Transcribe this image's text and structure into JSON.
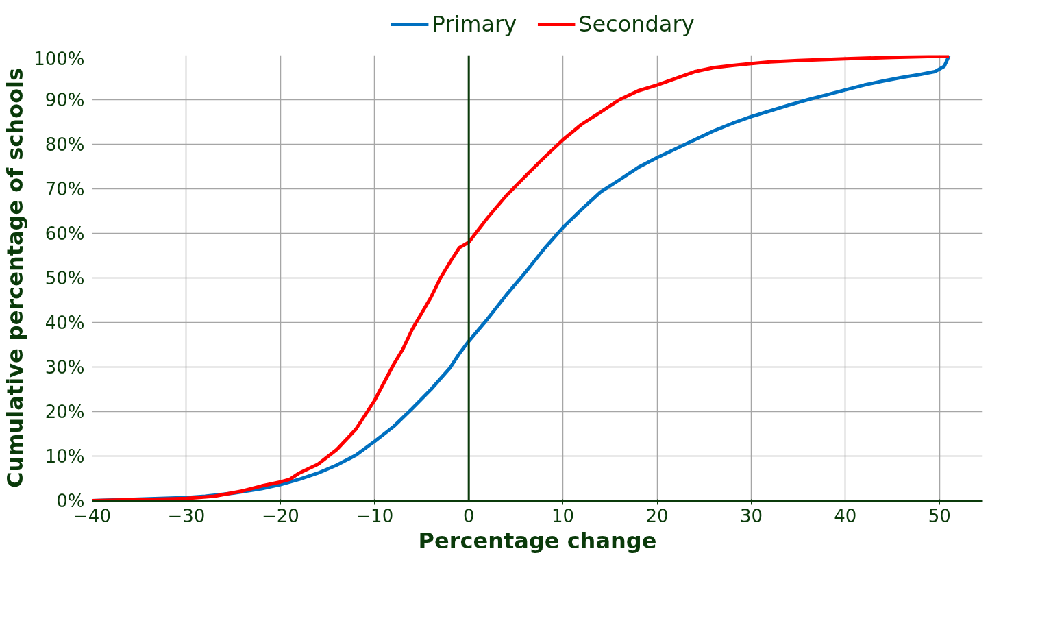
{
  "chart_data": {
    "type": "line",
    "xlabel": "Percentage change",
    "ylabel": "Cumulative percentage of schools",
    "legend": "top",
    "grid": true,
    "marker": "none",
    "line_style": "solid",
    "xlim": [
      -40,
      54.6
    ],
    "ylim": [
      0,
      100
    ],
    "xticks": [
      -40,
      -30,
      -20,
      -10,
      0,
      10,
      20,
      30,
      40,
      50
    ],
    "yticks": [
      {
        "value": 0,
        "label": "0%"
      },
      {
        "value": 10,
        "label": "10%"
      },
      {
        "value": 20,
        "label": "20%"
      },
      {
        "value": 30,
        "label": "30%"
      },
      {
        "value": 40,
        "label": "40%"
      },
      {
        "value": 50,
        "label": "50%"
      },
      {
        "value": 60,
        "label": "60%"
      },
      {
        "value": 70,
        "label": "70%"
      },
      {
        "value": 80,
        "label": "80%"
      },
      {
        "value": 90,
        "label": "90%"
      },
      {
        "value": 100,
        "label": "100%"
      }
    ],
    "ref_lines": [
      {
        "axis": "x",
        "value": 0,
        "color": "#0a3a0a"
      }
    ],
    "series": [
      {
        "name": "Primary",
        "color": "#0070c0",
        "x": [
          -40,
          -30,
          -28,
          -25,
          -22,
          -20,
          -18,
          -16,
          -14,
          -12,
          -10,
          -8,
          -6,
          -4,
          -2,
          -1,
          0,
          2,
          4,
          6,
          8,
          10,
          12,
          14,
          16,
          18,
          20,
          22,
          24,
          26,
          28,
          30,
          32,
          34,
          36,
          38,
          40,
          42,
          44,
          46,
          48,
          49.5,
          50.5,
          51
        ],
        "values": [
          0,
          0.7,
          1.0,
          1.7,
          2.7,
          3.6,
          4.8,
          6.2,
          8.0,
          10.2,
          13.3,
          16.6,
          20.7,
          25.0,
          29.8,
          33.0,
          35.8,
          40.8,
          46.2,
          51.2,
          56.5,
          61.3,
          65.4,
          69.3,
          72.0,
          74.8,
          77.0,
          79.0,
          81.0,
          83.0,
          84.7,
          86.2,
          87.5,
          88.8,
          90.0,
          91.1,
          92.2,
          93.3,
          94.2,
          95.0,
          95.7,
          96.3,
          97.5,
          99.8
        ]
      },
      {
        "name": "Secondary",
        "color": "#ff0000",
        "x": [
          -40,
          -30,
          -27,
          -24,
          -22,
          -20,
          -19,
          -18,
          -16,
          -14,
          -12,
          -10,
          -8,
          -7,
          -6,
          -4,
          -3,
          -2,
          -1,
          0,
          2,
          4,
          6,
          8,
          10,
          12,
          14,
          16,
          18,
          20,
          22,
          24,
          26,
          28,
          30,
          32,
          35,
          40,
          45,
          51
        ],
        "values": [
          0,
          0.5,
          1.0,
          2.2,
          3.3,
          4.2,
          4.8,
          6.2,
          8.2,
          11.5,
          16.0,
          22.5,
          30.5,
          34.0,
          38.5,
          45.7,
          50.0,
          53.5,
          56.8,
          58.0,
          63.5,
          68.5,
          72.8,
          77.0,
          81.0,
          84.5,
          87.2,
          90.0,
          92.0,
          93.3,
          94.8,
          96.3,
          97.2,
          97.7,
          98.1,
          98.5,
          98.8,
          99.2,
          99.5,
          99.8
        ]
      }
    ]
  }
}
